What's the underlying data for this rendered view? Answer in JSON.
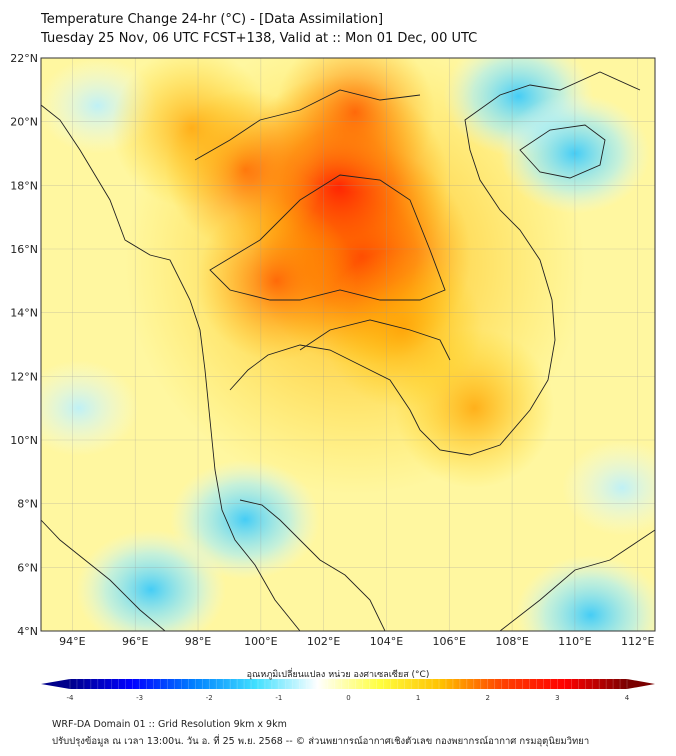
{
  "title": {
    "line1": "Temperature Change 24-hr (°C) - [Data Assimilation]",
    "line2": "Tuesday 25 Nov, 06 UTC FCST+138, Valid at :: Mon 01 Dec, 00 UTC"
  },
  "map": {
    "lon_range": [
      93,
      112.55
    ],
    "lat_range": [
      4,
      22
    ],
    "lon_ticks": [
      94,
      96,
      98,
      100,
      102,
      104,
      106,
      108,
      110,
      112
    ],
    "lon_labels": [
      "94°E",
      "96°E",
      "98°E",
      "100°E",
      "102°E",
      "104°E",
      "106°E",
      "108°E",
      "110°E",
      "112°E"
    ],
    "lat_ticks": [
      22,
      20,
      18,
      16,
      14,
      12,
      10,
      8,
      6,
      4
    ],
    "lat_labels": [
      "22°N",
      "20°N",
      "18°N",
      "16°N",
      "14°N",
      "12°N",
      "10°N",
      "8°N",
      "6°N",
      "4°N"
    ],
    "hotspots": [
      {
        "lon": 103.2,
        "lat": 15.8,
        "value": 3.0
      },
      {
        "lon": 102.5,
        "lat": 18.0,
        "value": 2.6
      },
      {
        "lon": 103.0,
        "lat": 20.3,
        "value": 2.2
      },
      {
        "lon": 100.5,
        "lat": 15.0,
        "value": 2.4
      },
      {
        "lon": 99.5,
        "lat": 18.5,
        "value": 2.0
      },
      {
        "lon": 106.8,
        "lat": 11.0,
        "value": 1.8
      },
      {
        "lon": 97.8,
        "lat": 19.8,
        "value": 1.5
      },
      {
        "lon": 104.5,
        "lat": 13.5,
        "value": 1.6
      }
    ],
    "coldspots": [
      {
        "lon": 108.2,
        "lat": 20.8,
        "value": -1.0
      },
      {
        "lon": 110.0,
        "lat": 19.0,
        "value": -1.0
      },
      {
        "lon": 99.5,
        "lat": 7.5,
        "value": -0.8
      },
      {
        "lon": 96.5,
        "lat": 5.3,
        "value": -1.0
      },
      {
        "lon": 94.2,
        "lat": 11.0,
        "value": -0.4
      },
      {
        "lon": 110.5,
        "lat": 4.5,
        "value": -0.8
      },
      {
        "lon": 111.5,
        "lat": 8.5,
        "value": -0.4
      },
      {
        "lon": 94.8,
        "lat": 20.5,
        "value": -0.4
      }
    ]
  },
  "colorbar": {
    "label": "อุณหภูมิเปลี่ยนแปลง หน่วย องศาเซลเซียส (°C)",
    "ticks": [
      "-4",
      "-3",
      "-2",
      "-1",
      "0",
      "1",
      "2",
      "3",
      "4"
    ],
    "range": [
      -4,
      4
    ],
    "colors": [
      "#00008b",
      "#0000ff",
      "#0080ff",
      "#40e0ff",
      "#ffffff",
      "#ffff40",
      "#ffc000",
      "#ff4000",
      "#ff0000",
      "#7a0000"
    ]
  },
  "footer": {
    "line1": "WRF-DA Domain 01 :: Grid Resolution 9km x 9km",
    "line2": "ปรับปรุงข้อมูล ณ เวลา 13:00น. วัน อ. ที่ 25 พ.ย. 2568 -- © ส่วนพยากรณ์อากาศเชิงตัวเลข กองพยากรณ์อากาศ กรมอุตุนิยมวิทยา"
  }
}
